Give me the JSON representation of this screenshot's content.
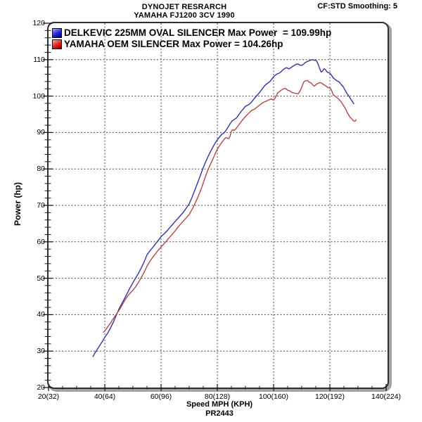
{
  "header": {
    "title_line1": "DYNOJET RESRARCH",
    "title_line2": "YAMAHA FJ1200 3CV 1990",
    "smoothing_info": "CF:STD Smoothing: 5"
  },
  "legend": {
    "items": [
      {
        "id": "delkevic",
        "label": "DELKEVIC 225MM OVAL SILENCER Max Power  = 109.99hp",
        "swatch_colors": [
          "#9a9aff",
          "#2222cc",
          "#000080"
        ]
      },
      {
        "id": "oem",
        "label": "YAMAHA OEM SILENCER Max Power = 104.26hp",
        "swatch_colors": [
          "#ff9a9a",
          "#e02020",
          "#8b0000"
        ]
      }
    ]
  },
  "footer": {
    "run_id": "PR2443"
  },
  "chart_data": {
    "type": "line",
    "title": "DYNOJET RESRARCH",
    "subtitle": "YAMAHA FJ1200 3CV 1990",
    "xlabel": "Speed MPH (KPH)",
    "ylabel": "Power (hp)",
    "xlim": [
      20,
      140
    ],
    "ylim": [
      20,
      120
    ],
    "x_major_step": 20,
    "x_minor_step": 5,
    "y_major_step": 10,
    "y_minor_step": 2,
    "grid": "major-dashed-both-axes",
    "legend_position": "top-left-inside",
    "x_tick_labels": [
      "20(32)",
      "40(64)",
      "60(96)",
      "80(128)",
      "100(160)",
      "120(192)",
      "140(224)"
    ],
    "y_tick_labels": [
      "20",
      "30",
      "40",
      "50",
      "60",
      "70",
      "80",
      "90",
      "100",
      "110",
      "120"
    ],
    "grid_color": "#4a4a4a",
    "series": [
      {
        "id": "delkevic",
        "name": "DELKEVIC 225MM OVAL SILENCER",
        "max_power_hp": 109.99,
        "color": "#3232a8",
        "points": [
          [
            35.8,
            28.5
          ],
          [
            36.3,
            29.2
          ],
          [
            37,
            30.1
          ],
          [
            38,
            31.3
          ],
          [
            39,
            32.5
          ],
          [
            40,
            33.8
          ],
          [
            41,
            34.9
          ],
          [
            42,
            36.3
          ],
          [
            43,
            37.9
          ],
          [
            44,
            39.7
          ],
          [
            45,
            41.5
          ],
          [
            46,
            43.0
          ],
          [
            47,
            44.4
          ],
          [
            48,
            45.9
          ],
          [
            49,
            47.4
          ],
          [
            50,
            48.8
          ],
          [
            51,
            50.1
          ],
          [
            52,
            51.4
          ],
          [
            53,
            52.9
          ],
          [
            54,
            54.5
          ],
          [
            55,
            56.4
          ],
          [
            56,
            57.5
          ],
          [
            57,
            58.4
          ],
          [
            58,
            59.4
          ],
          [
            59,
            60.4
          ],
          [
            60,
            61.4
          ],
          [
            61,
            62.1
          ],
          [
            62,
            62.9
          ],
          [
            63,
            63.8
          ],
          [
            64,
            64.7
          ],
          [
            65,
            65.6
          ],
          [
            66,
            66.4
          ],
          [
            67,
            67.3
          ],
          [
            68,
            68.2
          ],
          [
            69,
            69.3
          ],
          [
            70,
            70.4
          ],
          [
            71,
            72.2
          ],
          [
            72,
            74.2
          ],
          [
            73,
            76.2
          ],
          [
            74,
            78.3
          ],
          [
            75,
            80.4
          ],
          [
            76,
            82.2
          ],
          [
            77,
            83.9
          ],
          [
            78,
            85.4
          ],
          [
            79,
            86.8
          ],
          [
            80,
            88.0
          ],
          [
            81,
            89.0
          ],
          [
            81.7,
            89.6
          ],
          [
            82.3,
            89.8
          ],
          [
            83,
            90.5
          ],
          [
            84,
            91.7
          ],
          [
            84.7,
            92.6
          ],
          [
            85.3,
            93.2
          ],
          [
            86,
            93.6
          ],
          [
            86.7,
            93.9
          ],
          [
            87.3,
            94.5
          ],
          [
            88,
            95.3
          ],
          [
            88.7,
            96.0
          ],
          [
            89.3,
            96.5
          ],
          [
            90,
            97.2
          ],
          [
            90.7,
            97.5
          ],
          [
            91.3,
            97.7
          ],
          [
            92,
            98.2
          ],
          [
            92.7,
            98.9
          ],
          [
            93.3,
            99.5
          ],
          [
            94,
            100.1
          ],
          [
            94.7,
            100.7
          ],
          [
            95.3,
            101.3
          ],
          [
            96,
            102.0
          ],
          [
            96.7,
            102.7
          ],
          [
            97.3,
            103.2
          ],
          [
            98,
            103.6
          ],
          [
            98.7,
            104.0
          ],
          [
            99.3,
            104.6
          ],
          [
            100,
            105.3
          ],
          [
            100.7,
            105.8
          ],
          [
            101.3,
            106.1
          ],
          [
            102,
            106.3
          ],
          [
            102.7,
            106.7
          ],
          [
            103.3,
            107.2
          ],
          [
            104,
            107.6
          ],
          [
            104.7,
            107.8
          ],
          [
            105.3,
            107.5
          ],
          [
            106,
            107.7
          ],
          [
            106.7,
            108.1
          ],
          [
            107.3,
            108.4
          ],
          [
            108,
            108.7
          ],
          [
            108.7,
            108.8
          ],
          [
            109.3,
            108.5
          ],
          [
            110,
            108.4
          ],
          [
            110.7,
            108.8
          ],
          [
            111.3,
            109.2
          ],
          [
            112,
            109.5
          ],
          [
            112.7,
            109.7
          ],
          [
            113.3,
            109.9
          ],
          [
            113.9,
            110.0
          ],
          [
            114.4,
            109.8
          ],
          [
            114.9,
            109.9
          ],
          [
            115.4,
            109.5
          ],
          [
            115.9,
            108.6
          ],
          [
            116.4,
            107.5
          ],
          [
            116.9,
            106.6
          ],
          [
            117.4,
            106.9
          ],
          [
            117.9,
            107.5
          ],
          [
            118.4,
            107.3
          ],
          [
            118.9,
            106.7
          ],
          [
            119.5,
            106.4
          ],
          [
            120,
            106.3
          ],
          [
            120.7,
            105.6
          ],
          [
            121.3,
            104.9
          ],
          [
            122,
            104.5
          ],
          [
            122.7,
            104.1
          ],
          [
            123.3,
            103.9
          ],
          [
            124,
            103.2
          ],
          [
            124.7,
            102.6
          ],
          [
            125.3,
            101.8
          ],
          [
            126,
            100.8
          ],
          [
            126.7,
            100.1
          ],
          [
            127.3,
            99.3
          ],
          [
            128,
            98.5
          ],
          [
            128.5,
            97.9
          ]
        ]
      },
      {
        "id": "oem",
        "name": "YAMAHA OEM SILENCER",
        "max_power_hp": 104.26,
        "color": "#b04848",
        "points": [
          [
            39.5,
            35.2
          ],
          [
            40,
            35.5
          ],
          [
            41,
            36.6
          ],
          [
            42,
            37.7
          ],
          [
            43,
            38.9
          ],
          [
            44,
            40.0
          ],
          [
            45,
            41.1
          ],
          [
            46,
            42.4
          ],
          [
            47,
            43.8
          ],
          [
            48,
            45.0
          ],
          [
            49,
            45.9
          ],
          [
            50,
            46.7
          ],
          [
            51,
            47.7
          ],
          [
            52,
            48.9
          ],
          [
            53,
            50.2
          ],
          [
            54,
            51.7
          ],
          [
            55,
            53.3
          ],
          [
            56,
            54.6
          ],
          [
            57,
            55.7
          ],
          [
            58,
            56.7
          ],
          [
            59,
            57.7
          ],
          [
            60,
            58.6
          ],
          [
            61,
            59.4
          ],
          [
            62,
            60.3
          ],
          [
            63,
            61.2
          ],
          [
            64,
            62.1
          ],
          [
            65,
            63.0
          ],
          [
            66,
            64.0
          ],
          [
            67,
            64.9
          ],
          [
            68,
            65.8
          ],
          [
            69,
            66.6
          ],
          [
            70,
            67.5
          ],
          [
            71,
            68.9
          ],
          [
            72,
            70.4
          ],
          [
            73,
            72.1
          ],
          [
            74,
            74.0
          ],
          [
            74.5,
            75.0
          ],
          [
            75,
            76.2
          ],
          [
            75.5,
            77.3
          ],
          [
            76,
            78.4
          ],
          [
            76.5,
            79.4
          ],
          [
            77,
            80.3
          ],
          [
            78,
            82.0
          ],
          [
            79,
            83.7
          ],
          [
            79.5,
            84.6
          ],
          [
            80,
            85.4
          ],
          [
            81,
            86.6
          ],
          [
            82,
            87.7
          ],
          [
            82.5,
            88.2
          ],
          [
            83,
            88.6
          ],
          [
            83.5,
            88.5
          ],
          [
            84,
            88.3
          ],
          [
            84.5,
            88.9
          ],
          [
            85,
            90.4
          ],
          [
            85.5,
            90.8
          ],
          [
            86,
            90.6
          ],
          [
            86.5,
            90.9
          ],
          [
            87,
            91.4
          ],
          [
            88,
            92.5
          ],
          [
            89,
            93.5
          ],
          [
            90,
            94.4
          ],
          [
            91,
            95.2
          ],
          [
            92,
            95.9
          ],
          [
            92.5,
            96.2
          ],
          [
            93,
            96.3
          ],
          [
            94,
            96.9
          ],
          [
            95,
            97.5
          ],
          [
            96,
            98.1
          ],
          [
            97,
            98.5
          ],
          [
            98,
            98.8
          ],
          [
            99,
            99.2
          ],
          [
            100,
            98.9
          ],
          [
            100.8,
            99.8
          ],
          [
            101.5,
            100.9
          ],
          [
            102.5,
            101.5
          ],
          [
            103.5,
            102.0
          ],
          [
            104.2,
            102.1
          ],
          [
            105,
            101.6
          ],
          [
            105.8,
            101.4
          ],
          [
            106.5,
            101.0
          ],
          [
            107.5,
            100.8
          ],
          [
            108.7,
            100.6
          ],
          [
            109.5,
            101.5
          ],
          [
            110,
            102.5
          ],
          [
            110.8,
            104.0
          ],
          [
            111.5,
            104.2
          ],
          [
            112,
            104.3
          ],
          [
            112.6,
            103.8
          ],
          [
            113.2,
            103.7
          ],
          [
            114,
            103.0
          ],
          [
            114.5,
            102.7
          ],
          [
            115,
            103.1
          ],
          [
            115.7,
            103.5
          ],
          [
            116.4,
            103.7
          ],
          [
            117,
            103.6
          ],
          [
            117.7,
            103.2
          ],
          [
            118.5,
            102.8
          ],
          [
            119.2,
            102.4
          ],
          [
            120,
            102.3
          ],
          [
            120.6,
            101.6
          ],
          [
            121.2,
            100.3
          ],
          [
            122,
            99.9
          ],
          [
            122.7,
            99.5
          ],
          [
            123.5,
            98.9
          ],
          [
            124.2,
            98.2
          ],
          [
            125,
            97.2
          ],
          [
            125.7,
            96.3
          ],
          [
            126.3,
            95.3
          ],
          [
            127,
            94.4
          ],
          [
            127.7,
            93.8
          ],
          [
            128.4,
            93.2
          ],
          [
            129,
            93.1
          ],
          [
            129.3,
            93.5
          ]
        ]
      }
    ]
  }
}
